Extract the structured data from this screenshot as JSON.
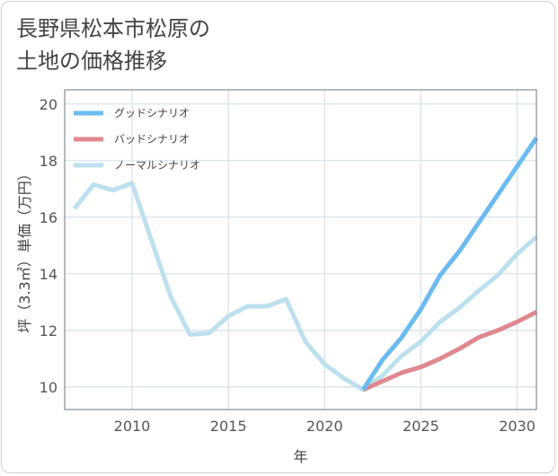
{
  "title": {
    "line1": "長野県松本市松原の",
    "line2": "土地の価格推移"
  },
  "colors": {
    "good": "#6bbbf0",
    "bad": "#e0888f",
    "normal": "#bde0ee",
    "grid": "#d8e3ea",
    "frame": "#6b7780"
  },
  "chart_data": {
    "type": "line",
    "xlabel": "年",
    "ylabel": "坪（3.3㎡）単価（万円）",
    "xlim": [
      2006.5,
      2031
    ],
    "ylim": [
      9.2,
      20.5
    ],
    "xticks": [
      2010,
      2015,
      2020,
      2025,
      2030
    ],
    "yticks": [
      10,
      12,
      14,
      16,
      18,
      20
    ],
    "grid": true,
    "legend_position": "top-left",
    "series": [
      {
        "name": "グッドシナリオ",
        "color": "#6bbbf0",
        "x": [
          2022,
          2023,
          2024,
          2025,
          2026,
          2027,
          2028,
          2029,
          2030,
          2031
        ],
        "y": [
          9.9,
          10.95,
          11.75,
          12.75,
          13.95,
          14.8,
          15.8,
          16.8,
          17.8,
          18.8
        ]
      },
      {
        "name": "バッドシナリオ",
        "color": "#e0888f",
        "x": [
          2022,
          2023,
          2024,
          2025,
          2026,
          2027,
          2028,
          2029,
          2030,
          2031
        ],
        "y": [
          9.9,
          10.2,
          10.5,
          10.7,
          11.0,
          11.35,
          11.75,
          12.0,
          12.3,
          12.65
        ]
      },
      {
        "name": "ノーマルシナリオ",
        "color": "#bde0ee",
        "x": [
          2007,
          2008,
          2009,
          2010,
          2011,
          2012,
          2013,
          2014,
          2015,
          2016,
          2017,
          2018,
          2019,
          2020,
          2021,
          2022,
          2023,
          2024,
          2025,
          2026,
          2027,
          2028,
          2029,
          2030,
          2031
        ],
        "y": [
          16.3,
          17.15,
          16.95,
          17.2,
          15.2,
          13.2,
          11.85,
          11.9,
          12.5,
          12.85,
          12.85,
          13.1,
          11.6,
          10.8,
          10.3,
          9.9,
          10.4,
          11.1,
          11.6,
          12.3,
          12.8,
          13.4,
          13.95,
          14.7,
          15.3
        ]
      }
    ]
  }
}
